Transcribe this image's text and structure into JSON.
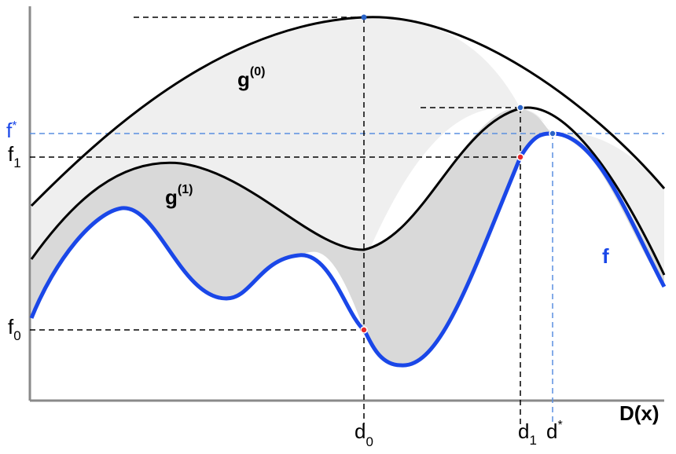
{
  "labels": {
    "g0": "g",
    "g0_sup": "(0)",
    "g1": "g",
    "g1_sup": "(1)",
    "f": "f",
    "x_axis": "D(x)",
    "f_star": "f",
    "f_star_sup": "*",
    "f1": "f",
    "f1_sub": "1",
    "f0": "f",
    "f0_sub": "0",
    "d0": "d",
    "d0_sub": "0",
    "d1": "d",
    "d1_sub": "1",
    "d_star": "d",
    "d_star_sup": "*"
  },
  "colors": {
    "upper_curve": "#000000",
    "lower_curve": "#000000",
    "f_curve": "#1a47e8",
    "band_light": "#efefef",
    "band_dark": "#d9d9d9",
    "reference_blue": "#5a8fe0",
    "marker_blue": "#2a63c8",
    "marker_red": "#e8282b"
  }
}
